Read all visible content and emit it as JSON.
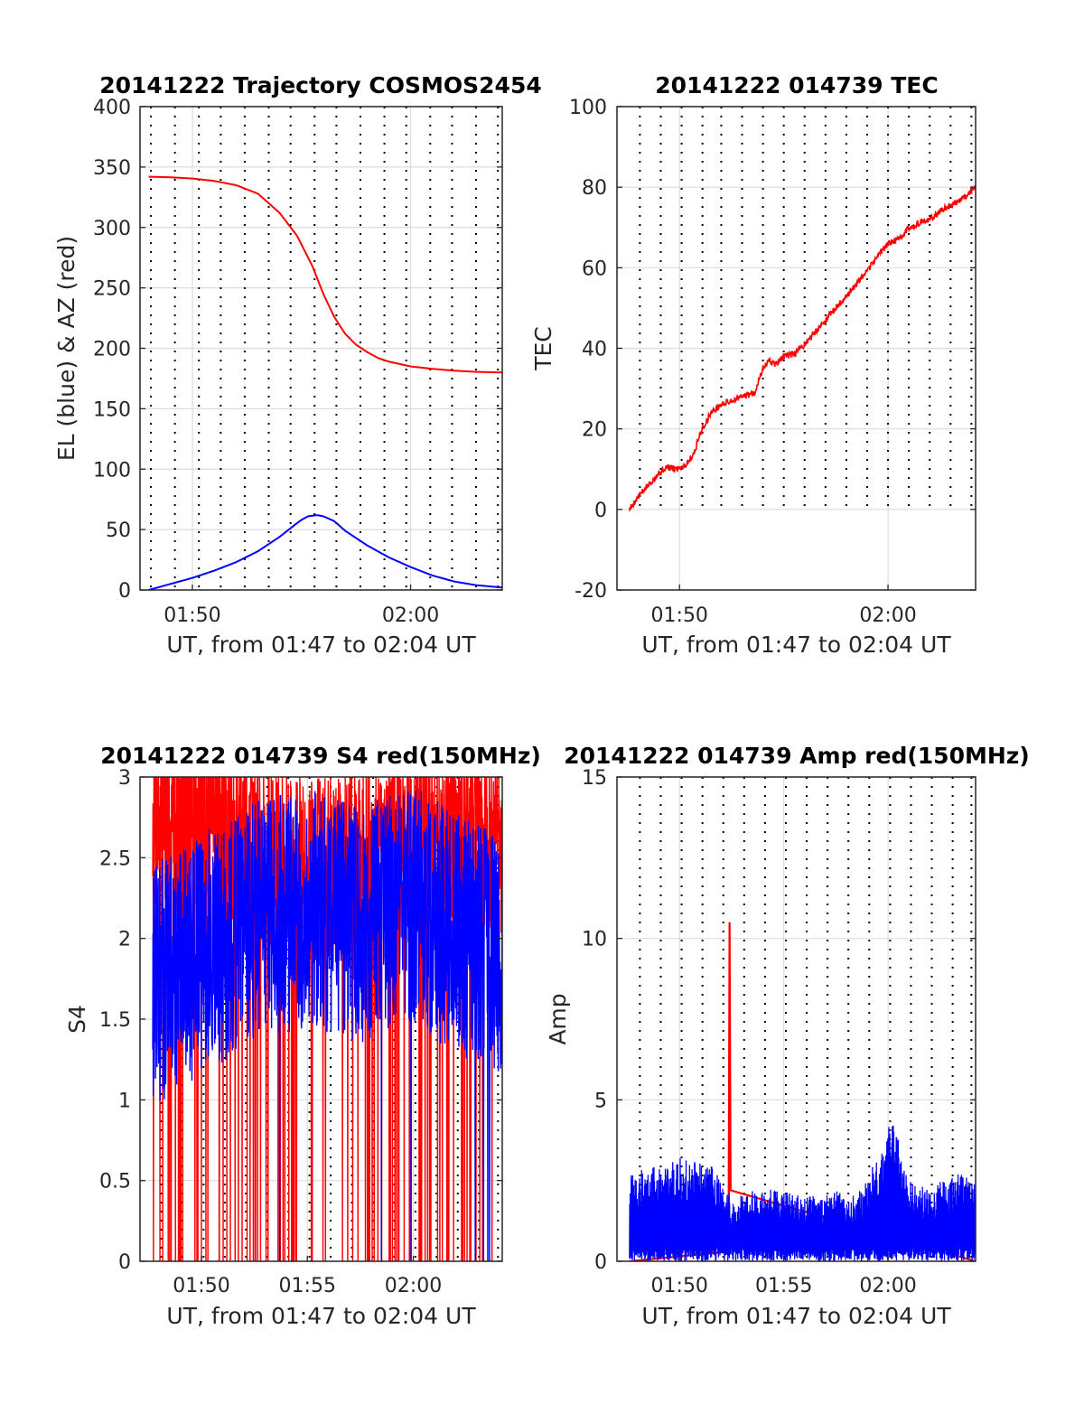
{
  "colors": {
    "red": "#ff0000",
    "blue": "#0000ff",
    "vline": "#000000",
    "grid": "#dcdcdc"
  },
  "chart_data": [
    {
      "id": "trajectory",
      "type": "line",
      "title": "20141222 Trajectory COSMOS2454",
      "xlabel": "UT, from 01:47 to 02:04 UT",
      "ylabel": "EL (blue) & AZ (red)",
      "xlim": [
        107.6,
        124.2
      ],
      "ylim": [
        0,
        400
      ],
      "xticks": [
        {
          "v": 110,
          "label": "01:50"
        },
        {
          "v": 120,
          "label": "02:00"
        }
      ],
      "yticks": [
        0,
        50,
        100,
        150,
        200,
        250,
        300,
        350,
        400
      ],
      "ytick_labels": [
        "0",
        "50",
        "100",
        "150",
        "200",
        "250",
        "300",
        "350",
        "400"
      ],
      "vlines": [
        108.1,
        109.2,
        110.3,
        111.3,
        112.4,
        113.5,
        114.5,
        115.6,
        116.6,
        117.7,
        118.8,
        119.8,
        120.9,
        121.9,
        123.0,
        124.0
      ],
      "series": [
        {
          "color": "red",
          "x": [
            108.0,
            109.0,
            110.0,
            111.0,
            112.0,
            113.0,
            114.0,
            114.8,
            115.5,
            116.0,
            116.5,
            117.0,
            117.5,
            118.0,
            118.5,
            119.0,
            120.0,
            121.0,
            122.0,
            123.0,
            124.2
          ],
          "y": [
            342,
            341.5,
            340.5,
            338.5,
            335,
            328,
            312,
            293,
            268,
            245,
            226,
            212,
            203,
            197,
            192,
            189,
            185,
            183,
            181.5,
            180.5,
            180
          ]
        },
        {
          "color": "blue",
          "x": [
            108.0,
            109.0,
            110.0,
            111.0,
            112.0,
            113.0,
            114.0,
            114.7,
            115.0,
            115.3,
            115.7,
            116.0,
            116.5,
            117.0,
            118.0,
            119.0,
            120.0,
            121.0,
            122.0,
            123.0,
            124.2
          ],
          "y": [
            0,
            5,
            10,
            16,
            23,
            32,
            44,
            54,
            58,
            61,
            62,
            61,
            57,
            49,
            37,
            27,
            19,
            12,
            7,
            4,
            2
          ]
        }
      ]
    },
    {
      "id": "tec",
      "type": "line",
      "title": "20141222 014739 TEC",
      "xlabel": "UT, from 01:47 to 02:04 UT",
      "ylabel": "TEC",
      "xlim": [
        107.0,
        124.2
      ],
      "ylim": [
        -20,
        100
      ],
      "xticks": [
        {
          "v": 110,
          "label": "01:50"
        },
        {
          "v": 120,
          "label": "02:00"
        }
      ],
      "yticks": [
        -20,
        0,
        20,
        40,
        60,
        80,
        100
      ],
      "ytick_labels": [
        "-20",
        "0",
        "20",
        "40",
        "60",
        "80",
        "100"
      ],
      "vlines_top": 0,
      "vlines": [
        108.1,
        109.1,
        110.1,
        111.1,
        112.0,
        113.0,
        114.0,
        115.0,
        116.0,
        117.0,
        118.0,
        119.0,
        120.0,
        121.0,
        122.0,
        123.0,
        124.0
      ],
      "series": [
        {
          "color": "red",
          "noise": 0.8,
          "x": [
            107.6,
            108.0,
            108.5,
            109.0,
            109.4,
            109.8,
            110.3,
            110.7,
            111.0,
            111.5,
            112.0,
            112.5,
            113.0,
            113.6,
            114.0,
            114.3,
            114.6,
            115.0,
            115.5,
            116.0,
            116.5,
            117.0,
            117.5,
            118.0,
            118.5,
            119.0,
            119.5,
            120.0,
            120.5,
            121.0,
            121.5,
            122.0,
            122.5,
            123.0,
            123.5,
            124.2
          ],
          "y": [
            0,
            3,
            6,
            9,
            10.5,
            10,
            11,
            14,
            19,
            24,
            26,
            27,
            28,
            29,
            35,
            37,
            36,
            38,
            38.5,
            41,
            44,
            47,
            50,
            53,
            56,
            59,
            63,
            66,
            67,
            70,
            71,
            72,
            74,
            75.5,
            77,
            80
          ]
        }
      ]
    },
    {
      "id": "s4",
      "type": "line",
      "title": "20141222 014739 S4 red(150MHz)",
      "xlabel": "UT, from 01:47 to 02:04 UT",
      "ylabel": "S4",
      "xlim": [
        107.1,
        124.2
      ],
      "ylim": [
        0,
        3
      ],
      "xticks": [
        {
          "v": 110,
          "label": "01:50"
        },
        {
          "v": 115,
          "label": "01:55"
        },
        {
          "v": 120,
          "label": "02:00"
        }
      ],
      "yticks": [
        0,
        0.5,
        1,
        1.5,
        2,
        2.5,
        3
      ],
      "ytick_labels": [
        "0",
        "0.5",
        "1",
        "1.5",
        "2",
        "2.5",
        "3"
      ],
      "vlines": [
        108.1,
        109.1,
        110.1,
        111.1,
        112.1,
        113.1,
        114.1,
        115.1,
        116.1,
        117.1,
        118.1,
        119.1,
        120.1,
        121.1,
        122.1,
        123.1,
        124.0
      ],
      "series": [
        {
          "color": "red",
          "x0": 107.7,
          "x1": 124.2,
          "mean": 2.7,
          "amp": 0.6,
          "drop_prob": 0.07,
          "seed": 7,
          "n": 1400,
          "x": [
            107.7,
            110.0,
            112.5,
            115.0,
            117.5,
            120.0,
            122.5,
            124.2
          ],
          "y": [
            2.7,
            2.8,
            2.6,
            2.4,
            2.5,
            2.6,
            2.7,
            2.6
          ]
        },
        {
          "color": "blue",
          "x0": 107.7,
          "x1": 124.2,
          "mean": 1.9,
          "amp": 0.75,
          "drop_prob": 0.003,
          "seed": 13,
          "n": 1400,
          "x": [
            107.7,
            110.0,
            112.5,
            115.0,
            117.5,
            120.0,
            122.5,
            124.2
          ],
          "y": [
            1.7,
            1.9,
            2.1,
            2.2,
            2.1,
            2.2,
            2.0,
            1.9
          ]
        }
      ]
    },
    {
      "id": "amp",
      "type": "line",
      "title": "20141222 014739 Amp red(150MHz)",
      "xlabel": "UT, from 01:47 to 02:04 UT",
      "ylabel": "Amp",
      "xlim": [
        107.0,
        124.2
      ],
      "ylim": [
        0,
        15
      ],
      "xticks": [
        {
          "v": 110,
          "label": "01:50"
        },
        {
          "v": 115,
          "label": "01:55"
        },
        {
          "v": 120,
          "label": "02:00"
        }
      ],
      "yticks": [
        0,
        5,
        10,
        15
      ],
      "ytick_labels": [
        "0",
        "5",
        "10",
        "15"
      ],
      "vlines": [
        108.1,
        109.1,
        110.1,
        111.1,
        112.1,
        113.1,
        114.1,
        115.1,
        116.1,
        117.1,
        118.1,
        119.1,
        120.1,
        121.1,
        122.1,
        123.1,
        124.0
      ],
      "series": [
        {
          "color": "red",
          "spike_x": 112.4,
          "spike_y": 10.5,
          "x": [
            107.6,
            112.35,
            112.4,
            112.45,
            124.2
          ],
          "y": [
            1.5,
            2.5,
            10.5,
            2.0,
            1.8
          ]
        },
        {
          "color": "blue",
          "seed": 21,
          "n": 1400,
          "x": [
            107.6,
            109.0,
            110.0,
            111.5,
            112.5,
            114.0,
            116.0,
            117.5,
            118.5,
            119.3,
            120.2,
            121.0,
            122.0,
            123.2,
            124.2
          ],
          "y": [
            2.8,
            3.0,
            3.2,
            3.0,
            2.0,
            2.3,
            2.0,
            2.2,
            2.0,
            3.0,
            4.5,
            2.5,
            2.2,
            2.8,
            2.5
          ]
        }
      ]
    }
  ]
}
